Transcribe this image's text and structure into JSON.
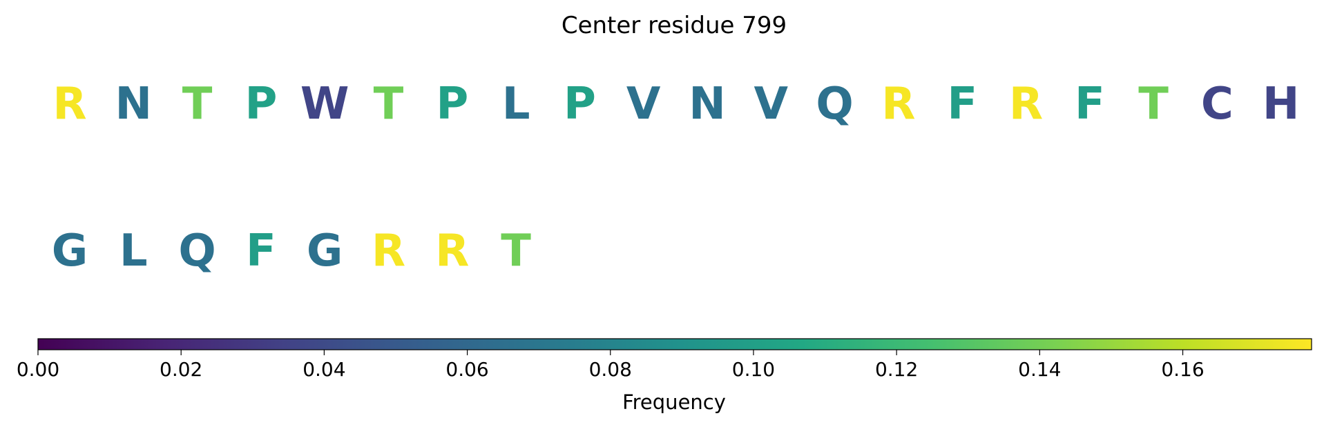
{
  "chart_data": {
    "type": "heatmap",
    "title": "Center residue 799",
    "residues": [
      {
        "letter": "R",
        "value": 0.176
      },
      {
        "letter": "N",
        "value": 0.066
      },
      {
        "letter": "T",
        "value": 0.139
      },
      {
        "letter": "P",
        "value": 0.101
      },
      {
        "letter": "W",
        "value": 0.036
      },
      {
        "letter": "T",
        "value": 0.139
      },
      {
        "letter": "P",
        "value": 0.101
      },
      {
        "letter": "L",
        "value": 0.066
      },
      {
        "letter": "P",
        "value": 0.101
      },
      {
        "letter": "V",
        "value": 0.066
      },
      {
        "letter": "N",
        "value": 0.066
      },
      {
        "letter": "V",
        "value": 0.066
      },
      {
        "letter": "Q",
        "value": 0.066
      },
      {
        "letter": "R",
        "value": 0.176
      },
      {
        "letter": "F",
        "value": 0.099
      },
      {
        "letter": "R",
        "value": 0.176
      },
      {
        "letter": "F",
        "value": 0.099
      },
      {
        "letter": "T",
        "value": 0.139
      },
      {
        "letter": "C",
        "value": 0.036
      },
      {
        "letter": "H",
        "value": 0.036
      },
      {
        "letter": "G",
        "value": 0.066
      },
      {
        "letter": "L",
        "value": 0.066
      },
      {
        "letter": "Q",
        "value": 0.066
      },
      {
        "letter": "F",
        "value": 0.099
      },
      {
        "letter": "G",
        "value": 0.066
      },
      {
        "letter": "R",
        "value": 0.176
      },
      {
        "letter": "R",
        "value": 0.176
      },
      {
        "letter": "T",
        "value": 0.139
      }
    ],
    "colorbar": {
      "label": "Frequency",
      "colormap": "viridis",
      "range": [
        0,
        0.178
      ],
      "ticks": [
        0.0,
        0.02,
        0.04,
        0.06,
        0.08,
        0.1,
        0.12,
        0.14,
        0.16
      ],
      "tick_labels": [
        "0.00",
        "0.02",
        "0.04",
        "0.06",
        "0.08",
        "0.10",
        "0.12",
        "0.14",
        "0.16"
      ]
    }
  }
}
